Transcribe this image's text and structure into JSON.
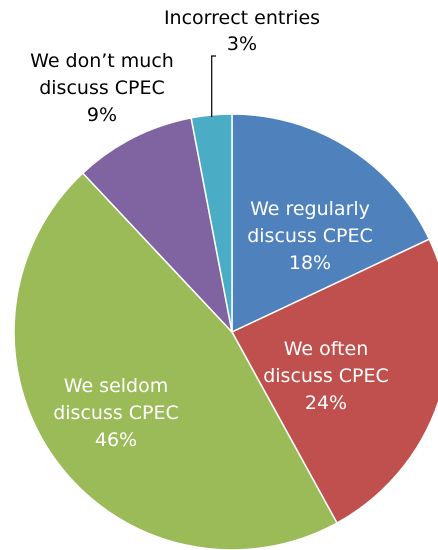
{
  "chart_data": {
    "type": "pie",
    "slices": [
      {
        "label_lines": [
          "We regularly",
          "discuss CPEC"
        ],
        "value": 18,
        "value_label": "18%",
        "color": "#4F81BD",
        "text_color": "#ffffff"
      },
      {
        "label_lines": [
          "We often",
          "discuss CPEC"
        ],
        "value": 24,
        "value_label": "24%",
        "color": "#C0504D",
        "text_color": "#ffffff"
      },
      {
        "label_lines": [
          "We seldom",
          "discuss CPEC"
        ],
        "value": 46,
        "value_label": "46%",
        "color": "#9BBB59",
        "text_color": "#ffffff"
      },
      {
        "label_lines": [
          "We don’t much",
          "discuss CPEC"
        ],
        "value": 9,
        "value_label": "9%",
        "color": "#8064A2",
        "text_color": "#000000"
      },
      {
        "label_lines": [
          "Incorrect entries"
        ],
        "value": 3,
        "value_label": "3%",
        "color": "#4BACC6",
        "text_color": "#000000"
      }
    ],
    "legend": "none"
  }
}
